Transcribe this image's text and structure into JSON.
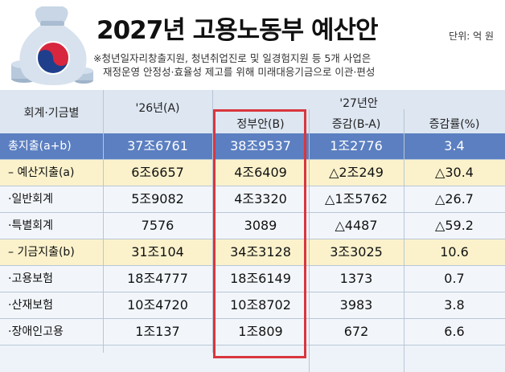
{
  "header": {
    "title": "2027년 고용노동부 예산안",
    "unit": "단위: 억 원",
    "notes": [
      "※청년일자리창출지원, 청년취업진로 및 일경험지원 등 5개 사업은",
      "재정운영 안정성·효율성 제고를 위해 미래대응기금으로 이관·편성"
    ]
  },
  "table": {
    "headers": {
      "account": "회계·기금별",
      "y26": "'26년(A)",
      "y27_group": "'27년안",
      "gov": "정부안(B)",
      "diff": "증감(B-A)",
      "rate": "증감률(%)"
    },
    "rows": [
      {
        "label": "총지출(a+b)",
        "y26": "37조6761",
        "gov": "38조9537",
        "diff": "1조2776",
        "rate": "3.4",
        "style": "total"
      },
      {
        "label": "– 예산지출(a)",
        "y26": "6조6657",
        "gov": "4조6409",
        "diff": "△2조249",
        "rate": "△30.4",
        "style": "sub"
      },
      {
        "label": "·일반회계",
        "y26": "5조9082",
        "gov": "4조3320",
        "diff": "△1조5762",
        "rate": "△26.7",
        "style": "plain"
      },
      {
        "label": "·특별회계",
        "y26": "7576",
        "gov": "3089",
        "diff": "△4487",
        "rate": "△59.2",
        "style": "plain"
      },
      {
        "label": "– 기금지출(b)",
        "y26": "31조104",
        "gov": "34조3128",
        "diff": "3조3025",
        "rate": "10.6",
        "style": "sub"
      },
      {
        "label": "·고용보험",
        "y26": "18조4777",
        "gov": "18조6149",
        "diff": "1373",
        "rate": "0.7",
        "style": "plain"
      },
      {
        "label": "·산재보험",
        "y26": "10조4720",
        "gov": "10조8702",
        "diff": "3983",
        "rate": "3.8",
        "style": "plain"
      },
      {
        "label": "·장애인고용",
        "y26": "1조137",
        "gov": "1조809",
        "diff": "672",
        "rate": "6.6",
        "style": "plain"
      }
    ]
  },
  "colors": {
    "total_row": "#5b7fc1",
    "sub_row": "#fbf2cc",
    "highlight_border": "#d9363e",
    "header_bg": "#dde6f1"
  },
  "icons": [
    "money-bag-icon",
    "taegeuk-emblem-icon",
    "coin-stack-icon"
  ]
}
